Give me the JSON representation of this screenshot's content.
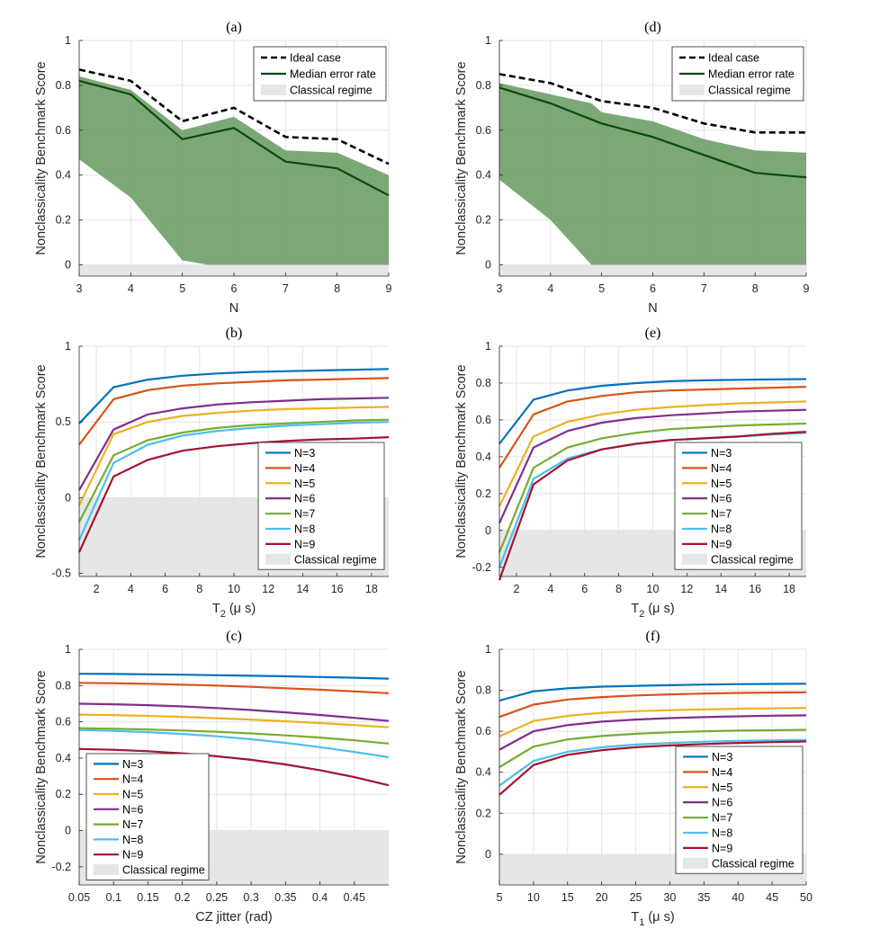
{
  "chart_data": [
    {
      "id": "a",
      "type": "line",
      "title": "(a)",
      "xlabel": "N",
      "ylabel": "Nonclassicality Benchmark Score",
      "xlim": [
        3,
        9
      ],
      "ylim": [
        -0.05,
        1
      ],
      "xticks": [
        3,
        4,
        5,
        6,
        7,
        8,
        9
      ],
      "yticks": [
        0,
        0.2,
        0.4,
        0.6,
        0.8,
        1
      ],
      "grid": true,
      "legend_location": "top-right",
      "classical_regime": {
        "label": "Classical regime",
        "range": [
          -0.05,
          0
        ]
      },
      "band": {
        "x": [
          3,
          4,
          5,
          5.5,
          6,
          7,
          8,
          9
        ],
        "upper": [
          0.84,
          0.78,
          0.6,
          0.63,
          0.66,
          0.51,
          0.5,
          0.4
        ],
        "lower": [
          0.47,
          0.3,
          0.02,
          0.0,
          0.0,
          0.0,
          0.0,
          0.0
        ]
      },
      "series": [
        {
          "name": "Ideal case",
          "style": "dashed",
          "color": "#000000",
          "x": [
            3,
            4,
            5,
            6,
            7,
            8,
            9
          ],
          "values": [
            0.87,
            0.82,
            0.64,
            0.7,
            0.57,
            0.56,
            0.45
          ]
        },
        {
          "name": "Median error rate",
          "style": "solid",
          "color": "#0b4a0b",
          "x": [
            3,
            4,
            5,
            6,
            7,
            8,
            9
          ],
          "values": [
            0.82,
            0.76,
            0.56,
            0.61,
            0.46,
            0.43,
            0.31
          ]
        }
      ]
    },
    {
      "id": "d",
      "type": "line",
      "title": "(d)",
      "xlabel": "N",
      "ylabel": "Nonclassicality Benchmark Score",
      "xlim": [
        3,
        9
      ],
      "ylim": [
        -0.05,
        1
      ],
      "xticks": [
        3,
        4,
        5,
        6,
        7,
        8,
        9
      ],
      "yticks": [
        0,
        0.2,
        0.4,
        0.6,
        0.8,
        1
      ],
      "grid": true,
      "legend_location": "top-right",
      "classical_regime": {
        "label": "Classical regime",
        "range": [
          -0.05,
          0
        ]
      },
      "band": {
        "x": [
          3,
          4,
          4.8,
          5,
          6,
          7,
          8,
          9
        ],
        "upper": [
          0.81,
          0.76,
          0.72,
          0.68,
          0.64,
          0.56,
          0.51,
          0.5
        ],
        "lower": [
          0.38,
          0.2,
          0.0,
          0.0,
          0.0,
          0.0,
          0.0,
          0.0
        ]
      },
      "series": [
        {
          "name": "Ideal case",
          "style": "dashed",
          "color": "#000000",
          "x": [
            3,
            4,
            5,
            6,
            7,
            8,
            9
          ],
          "values": [
            0.85,
            0.81,
            0.73,
            0.7,
            0.63,
            0.59,
            0.59
          ]
        },
        {
          "name": "Median error rate",
          "style": "solid",
          "color": "#0b4a0b",
          "x": [
            3,
            4,
            5,
            6,
            7,
            8,
            9
          ],
          "values": [
            0.79,
            0.72,
            0.63,
            0.57,
            0.49,
            0.41,
            0.39
          ]
        }
      ]
    },
    {
      "id": "b",
      "type": "line",
      "title": "(b)",
      "xlabel": "T",
      "xlabel_sub": "2",
      "xlabel_rest": " (μ s)",
      "ylabel": "Nonclassicality Benchmark Score",
      "xlim": [
        1,
        19
      ],
      "ylim": [
        -0.52,
        1
      ],
      "xticks": [
        2,
        4,
        6,
        8,
        10,
        12,
        14,
        16,
        18
      ],
      "yticks": [
        -0.5,
        0,
        0.5,
        1
      ],
      "grid": true,
      "legend_location": "bottom-right",
      "classical_regime": {
        "label": "Classical regime",
        "range": [
          -0.52,
          0
        ]
      },
      "x": [
        1,
        3,
        5,
        7,
        9,
        11,
        13,
        15,
        17,
        19
      ],
      "series": [
        {
          "name": "N=3",
          "color": "#0072BD",
          "values": [
            0.49,
            0.73,
            0.78,
            0.805,
            0.82,
            0.83,
            0.835,
            0.84,
            0.845,
            0.85
          ]
        },
        {
          "name": "N=4",
          "color": "#D95319",
          "values": [
            0.35,
            0.65,
            0.71,
            0.74,
            0.755,
            0.765,
            0.775,
            0.78,
            0.785,
            0.79
          ]
        },
        {
          "name": "N=5",
          "color": "#EDB120",
          "values": [
            -0.05,
            0.42,
            0.5,
            0.54,
            0.56,
            0.575,
            0.585,
            0.59,
            0.595,
            0.6
          ]
        },
        {
          "name": "N=6",
          "color": "#7E2F8E",
          "values": [
            0.05,
            0.45,
            0.55,
            0.59,
            0.615,
            0.63,
            0.64,
            0.65,
            0.655,
            0.66
          ]
        },
        {
          "name": "N=7",
          "color": "#77AC30",
          "values": [
            -0.16,
            0.28,
            0.38,
            0.43,
            0.46,
            0.48,
            0.49,
            0.5,
            0.51,
            0.515
          ]
        },
        {
          "name": "N=8",
          "color": "#4DBEEE",
          "values": [
            -0.28,
            0.23,
            0.35,
            0.41,
            0.44,
            0.46,
            0.475,
            0.485,
            0.495,
            0.5
          ]
        },
        {
          "name": "N=9",
          "color": "#A2142F",
          "values": [
            -0.36,
            0.14,
            0.25,
            0.31,
            0.34,
            0.36,
            0.375,
            0.385,
            0.39,
            0.4
          ]
        }
      ]
    },
    {
      "id": "e",
      "type": "line",
      "title": "(e)",
      "xlabel": "T",
      "xlabel_sub": "2",
      "xlabel_rest": " (μ s)",
      "ylabel": "Nonclassicality Benchmark Score",
      "xlim": [
        1,
        19
      ],
      "ylim": [
        -0.25,
        1
      ],
      "xticks": [
        2,
        4,
        6,
        8,
        10,
        12,
        14,
        16,
        18
      ],
      "yticks": [
        -0.2,
        0,
        0.2,
        0.4,
        0.6,
        0.8,
        1
      ],
      "grid": true,
      "legend_location": "bottom-right",
      "classical_regime": {
        "label": "Classical regime",
        "range": [
          -0.25,
          0
        ]
      },
      "x": [
        1,
        3,
        5,
        7,
        9,
        11,
        13,
        15,
        17,
        19
      ],
      "series": [
        {
          "name": "N=3",
          "color": "#0072BD",
          "values": [
            0.47,
            0.71,
            0.76,
            0.785,
            0.8,
            0.81,
            0.815,
            0.818,
            0.82,
            0.822
          ]
        },
        {
          "name": "N=4",
          "color": "#D95319",
          "values": [
            0.34,
            0.63,
            0.7,
            0.73,
            0.75,
            0.76,
            0.765,
            0.77,
            0.775,
            0.78
          ]
        },
        {
          "name": "N=5",
          "color": "#EDB120",
          "values": [
            0.13,
            0.51,
            0.59,
            0.63,
            0.655,
            0.67,
            0.68,
            0.69,
            0.695,
            0.7
          ]
        },
        {
          "name": "N=6",
          "color": "#7E2F8E",
          "values": [
            0.04,
            0.45,
            0.54,
            0.585,
            0.61,
            0.625,
            0.635,
            0.645,
            0.65,
            0.655
          ]
        },
        {
          "name": "N=7",
          "color": "#77AC30",
          "values": [
            -0.12,
            0.34,
            0.45,
            0.5,
            0.53,
            0.55,
            0.56,
            0.57,
            0.575,
            0.58
          ]
        },
        {
          "name": "N=8",
          "color": "#4DBEEE",
          "values": [
            -0.2,
            0.28,
            0.39,
            0.44,
            0.47,
            0.49,
            0.5,
            0.51,
            0.52,
            0.53
          ]
        },
        {
          "name": "N=9",
          "color": "#A2142F",
          "values": [
            -0.27,
            0.25,
            0.38,
            0.44,
            0.47,
            0.49,
            0.5,
            0.51,
            0.525,
            0.535
          ]
        }
      ]
    },
    {
      "id": "c",
      "type": "line",
      "title": "(c)",
      "xlabel": "CZ jitter (rad)",
      "ylabel": "Nonclassicality Benchmark Score",
      "xlim": [
        0.05,
        0.5
      ],
      "ylim": [
        -0.3,
        1
      ],
      "xticks": [
        0.05,
        0.1,
        0.15,
        0.2,
        0.25,
        0.3,
        0.35,
        0.4,
        0.45
      ],
      "yticks": [
        -0.2,
        0,
        0.2,
        0.4,
        0.6,
        0.8,
        1
      ],
      "grid": true,
      "legend_location": "bottom-left",
      "classical_regime": {
        "label": "Classical regime",
        "range": [
          -0.3,
          0
        ]
      },
      "x": [
        0.05,
        0.1,
        0.15,
        0.2,
        0.25,
        0.3,
        0.35,
        0.4,
        0.45,
        0.5
      ],
      "series": [
        {
          "name": "N=3",
          "color": "#0072BD",
          "values": [
            0.865,
            0.864,
            0.862,
            0.86,
            0.857,
            0.854,
            0.851,
            0.847,
            0.843,
            0.838
          ]
        },
        {
          "name": "N=4",
          "color": "#D95319",
          "values": [
            0.815,
            0.813,
            0.81,
            0.805,
            0.8,
            0.793,
            0.785,
            0.777,
            0.768,
            0.758
          ]
        },
        {
          "name": "N=5",
          "color": "#EDB120",
          "values": [
            0.64,
            0.637,
            0.633,
            0.627,
            0.62,
            0.612,
            0.603,
            0.593,
            0.582,
            0.57
          ]
        },
        {
          "name": "N=6",
          "color": "#7E2F8E",
          "values": [
            0.7,
            0.697,
            0.692,
            0.685,
            0.676,
            0.665,
            0.652,
            0.638,
            0.622,
            0.605
          ]
        },
        {
          "name": "N=7",
          "color": "#77AC30",
          "values": [
            0.565,
            0.562,
            0.558,
            0.552,
            0.545,
            0.536,
            0.525,
            0.513,
            0.498,
            0.48
          ]
        },
        {
          "name": "N=8",
          "color": "#4DBEEE",
          "values": [
            0.555,
            0.55,
            0.543,
            0.533,
            0.52,
            0.504,
            0.484,
            0.46,
            0.434,
            0.405
          ]
        },
        {
          "name": "N=9",
          "color": "#A2142F",
          "values": [
            0.45,
            0.446,
            0.438,
            0.426,
            0.41,
            0.39,
            0.365,
            0.333,
            0.295,
            0.25
          ]
        }
      ]
    },
    {
      "id": "f",
      "type": "line",
      "title": "(f)",
      "xlabel": "T",
      "xlabel_sub": "1",
      "xlabel_rest": " (μ s)",
      "ylabel": "Nonclassicality Benchmark Score",
      "xlim": [
        5,
        50
      ],
      "ylim": [
        -0.15,
        1
      ],
      "xticks": [
        5,
        10,
        15,
        20,
        25,
        30,
        35,
        40,
        45,
        50
      ],
      "yticks": [
        0,
        0.2,
        0.4,
        0.6,
        0.8,
        1
      ],
      "grid": true,
      "legend_location": "bottom-right",
      "classical_regime": {
        "label": "Classical regime",
        "range": [
          -0.15,
          0
        ]
      },
      "x": [
        5,
        10,
        15,
        20,
        25,
        30,
        35,
        40,
        45,
        50
      ],
      "series": [
        {
          "name": "N=3",
          "color": "#0072BD",
          "values": [
            0.75,
            0.795,
            0.81,
            0.818,
            0.822,
            0.825,
            0.828,
            0.83,
            0.831,
            0.832
          ]
        },
        {
          "name": "N=4",
          "color": "#D95319",
          "values": [
            0.67,
            0.73,
            0.755,
            0.767,
            0.775,
            0.78,
            0.784,
            0.787,
            0.789,
            0.79
          ]
        },
        {
          "name": "N=5",
          "color": "#EDB120",
          "values": [
            0.575,
            0.65,
            0.675,
            0.69,
            0.698,
            0.703,
            0.707,
            0.71,
            0.712,
            0.714
          ]
        },
        {
          "name": "N=6",
          "color": "#7E2F8E",
          "values": [
            0.51,
            0.6,
            0.63,
            0.647,
            0.657,
            0.664,
            0.669,
            0.673,
            0.676,
            0.678
          ]
        },
        {
          "name": "N=7",
          "color": "#77AC30",
          "values": [
            0.425,
            0.525,
            0.56,
            0.577,
            0.588,
            0.595,
            0.6,
            0.603,
            0.605,
            0.607
          ]
        },
        {
          "name": "N=8",
          "color": "#4DBEEE",
          "values": [
            0.335,
            0.455,
            0.5,
            0.522,
            0.535,
            0.543,
            0.549,
            0.553,
            0.556,
            0.558
          ]
        },
        {
          "name": "N=9",
          "color": "#A2142F",
          "values": [
            0.29,
            0.435,
            0.485,
            0.508,
            0.522,
            0.531,
            0.538,
            0.543,
            0.547,
            0.55
          ]
        }
      ]
    }
  ]
}
